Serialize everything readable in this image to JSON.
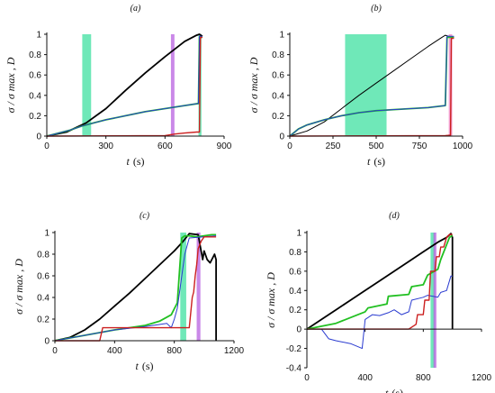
{
  "colors": {
    "series1": "#000000",
    "series2": "#22c022",
    "series3": "#2a3bd0",
    "series4": "#cc2020",
    "band_green": "#3fe0a0",
    "band_violet": "#b860e0",
    "band_pink": "#f080c0"
  },
  "chart_data": [
    {
      "type": "line",
      "panel_label": "(a)",
      "xlabel_var": "t",
      "xlabel_unit": "(s)",
      "ylabel": "σ / σ max ,  D",
      "xlim": [
        0,
        900
      ],
      "ylim": [
        0,
        1
      ],
      "xticks": [
        0,
        300,
        600,
        900
      ],
      "yticks": [
        0,
        0.2,
        0.4,
        0.6,
        0.8,
        1
      ],
      "bands": [
        {
          "x0": 180,
          "x1": 225,
          "color_key": "band_green"
        },
        {
          "x0": 630,
          "x1": 648,
          "color_key": "band_violet"
        },
        {
          "x0": 770,
          "x1": 785,
          "color_key": "band_green"
        }
      ],
      "series": [
        {
          "color_key": "series1",
          "width": 1.8,
          "x": [
            0,
            100,
            200,
            300,
            400,
            500,
            600,
            700,
            760,
            775,
            790
          ],
          "y": [
            0,
            0.04,
            0.13,
            0.27,
            0.45,
            0.62,
            0.78,
            0.93,
            0.99,
            1.0,
            0.98
          ]
        },
        {
          "color_key": "series2",
          "width": 1.8,
          "x": [
            0,
            60,
            120,
            180,
            240,
            300,
            400,
            500,
            600,
            700,
            770,
            775,
            790
          ],
          "y": [
            0,
            0.03,
            0.06,
            0.1,
            0.13,
            0.16,
            0.2,
            0.24,
            0.27,
            0.3,
            0.32,
            0.97,
            0.97
          ]
        },
        {
          "color_key": "series3",
          "width": 1.0,
          "x": [
            0,
            60,
            120,
            180,
            240,
            300,
            400,
            500,
            600,
            700,
            770,
            775,
            790
          ],
          "y": [
            0,
            0.03,
            0.06,
            0.1,
            0.13,
            0.16,
            0.2,
            0.24,
            0.27,
            0.3,
            0.32,
            0.98,
            0.98
          ]
        },
        {
          "color_key": "series4",
          "width": 1.4,
          "x": [
            0,
            600,
            650,
            700,
            760,
            775,
            780,
            790
          ],
          "y": [
            0,
            0.005,
            0.02,
            0.03,
            0.04,
            0.04,
            0.97,
            0.97
          ]
        }
      ]
    },
    {
      "type": "line",
      "panel_label": "(b)",
      "xlabel_var": "t",
      "xlabel_unit": "(s)",
      "ylabel": "σ / σ max ,  D",
      "xlim": [
        0,
        1000
      ],
      "ylim": [
        0,
        1
      ],
      "xticks": [
        0,
        250,
        500,
        750,
        1000
      ],
      "yticks": [
        0,
        0.2,
        0.4,
        0.6,
        0.8,
        1
      ],
      "bands": [
        {
          "x0": 320,
          "x1": 560,
          "color_key": "band_green"
        },
        {
          "x0": 920,
          "x1": 940,
          "color_key": "band_pink"
        }
      ],
      "series": [
        {
          "color_key": "series1",
          "width": 1.0,
          "x": [
            0,
            100,
            200,
            300,
            400,
            500,
            600,
            700,
            800,
            880,
            900,
            920,
            950
          ],
          "y": [
            0,
            0.05,
            0.14,
            0.27,
            0.4,
            0.52,
            0.64,
            0.76,
            0.88,
            0.97,
            0.99,
            0.98,
            0.97
          ]
        },
        {
          "color_key": "series2",
          "width": 1.8,
          "x": [
            0,
            50,
            100,
            200,
            300,
            400,
            500,
            600,
            700,
            800,
            900,
            910,
            950
          ],
          "y": [
            0,
            0.07,
            0.11,
            0.16,
            0.2,
            0.23,
            0.25,
            0.26,
            0.27,
            0.28,
            0.3,
            0.97,
            0.97
          ]
        },
        {
          "color_key": "series3",
          "width": 1.0,
          "x": [
            0,
            50,
            100,
            200,
            300,
            400,
            500,
            600,
            700,
            800,
            900,
            910,
            950
          ],
          "y": [
            0,
            0.07,
            0.11,
            0.16,
            0.2,
            0.23,
            0.25,
            0.26,
            0.27,
            0.28,
            0.3,
            0.98,
            0.98
          ]
        },
        {
          "color_key": "series4",
          "width": 1.4,
          "x": [
            0,
            900,
            930,
            935,
            950
          ],
          "y": [
            0,
            0.005,
            0.01,
            0.96,
            0.96
          ]
        }
      ]
    },
    {
      "type": "line",
      "panel_label": "(c)",
      "xlabel_var": "t",
      "xlabel_unit": "(s)",
      "ylabel": "σ / σ max ,  D",
      "xlim": [
        0,
        1200
      ],
      "ylim": [
        0,
        1
      ],
      "xticks": [
        0,
        400,
        800,
        1200
      ],
      "yticks": [
        0,
        0.2,
        0.4,
        0.6,
        0.8,
        1
      ],
      "bands": [
        {
          "x0": 840,
          "x1": 880,
          "color_key": "band_green"
        },
        {
          "x0": 950,
          "x1": 975,
          "color_key": "band_violet"
        }
      ],
      "series": [
        {
          "color_key": "series1",
          "width": 1.8,
          "x": [
            0,
            100,
            200,
            300,
            400,
            500,
            600,
            700,
            800,
            860,
            900,
            960,
            990,
            1000,
            1020,
            1040,
            1070,
            1080,
            1080
          ],
          "y": [
            0,
            0.03,
            0.1,
            0.2,
            0.32,
            0.44,
            0.57,
            0.7,
            0.83,
            0.92,
            0.99,
            0.98,
            0.75,
            0.83,
            0.75,
            0.72,
            0.8,
            0.75,
            0
          ]
        },
        {
          "color_key": "series2",
          "width": 1.8,
          "x": [
            0,
            200,
            400,
            600,
            700,
            780,
            820,
            850,
            870,
            880,
            900,
            950,
            1000,
            1050,
            1080
          ],
          "y": [
            0,
            0.05,
            0.1,
            0.14,
            0.18,
            0.24,
            0.35,
            0.95,
            0.97,
            0.97,
            0.97,
            0.96,
            0.97,
            0.98,
            0.98
          ]
        },
        {
          "color_key": "series3",
          "width": 1.0,
          "x": [
            0,
            200,
            400,
            600,
            700,
            750,
            780,
            800,
            820,
            850,
            870,
            900,
            1000,
            1080
          ],
          "y": [
            0,
            0.05,
            0.1,
            0.13,
            0.15,
            0.16,
            0.12,
            0.2,
            0.3,
            0.6,
            0.8,
            0.95,
            0.96,
            0.97
          ]
        },
        {
          "color_key": "series4",
          "width": 1.4,
          "x": [
            0,
            300,
            320,
            800,
            900,
            920,
            930,
            940,
            950,
            960,
            980,
            1000,
            1080
          ],
          "y": [
            0,
            0,
            0.12,
            0.12,
            0.12,
            0.4,
            0.45,
            0.6,
            0.7,
            0.85,
            0.92,
            0.96,
            0.96
          ]
        }
      ]
    },
    {
      "type": "line",
      "panel_label": "(d)",
      "xlabel_var": "t",
      "xlabel_unit": "(s)",
      "ylabel": "σ / σ max ,  D",
      "xlim": [
        0,
        1200
      ],
      "ylim": [
        -0.4,
        1
      ],
      "xticks": [
        0,
        400,
        800,
        1200
      ],
      "yticks": [
        -0.4,
        -0.2,
        0,
        0.2,
        0.4,
        0.6,
        0.8,
        1
      ],
      "bands": [
        {
          "x0": 850,
          "x1": 880,
          "color_key": "band_green"
        },
        {
          "x0": 870,
          "x1": 890,
          "color_key": "band_violet"
        }
      ],
      "series": [
        {
          "color_key": "series1",
          "width": 1.8,
          "x": [
            0,
            100,
            200,
            300,
            400,
            500,
            600,
            700,
            800,
            900,
            960,
            990,
            1000,
            1000
          ],
          "y": [
            0,
            0.1,
            0.2,
            0.3,
            0.4,
            0.5,
            0.6,
            0.7,
            0.8,
            0.9,
            0.95,
            0.99,
            0.95,
            0
          ]
        },
        {
          "color_key": "series2",
          "width": 1.8,
          "x": [
            0,
            200,
            300,
            400,
            420,
            550,
            560,
            700,
            720,
            800,
            830,
            900,
            920,
            980,
            1000
          ],
          "y": [
            0,
            0.06,
            0.12,
            0.18,
            0.22,
            0.26,
            0.34,
            0.36,
            0.44,
            0.46,
            0.56,
            0.62,
            0.72,
            0.95,
            0.97
          ]
        },
        {
          "color_key": "series3",
          "width": 1.0,
          "x": [
            0,
            100,
            150,
            200,
            300,
            380,
            400,
            450,
            500,
            560,
            600,
            650,
            700,
            720,
            800,
            830,
            900,
            920,
            960,
            990,
            1000
          ],
          "y": [
            0,
            0,
            -0.1,
            -0.12,
            -0.15,
            -0.2,
            0.1,
            0.15,
            0.14,
            0.17,
            0.2,
            0.15,
            0.18,
            0.3,
            0.33,
            0.35,
            0.33,
            0.38,
            0.4,
            0.55,
            0.55
          ]
        },
        {
          "color_key": "series4",
          "width": 1.4,
          "x": [
            0,
            700,
            750,
            760,
            800,
            810,
            840,
            850,
            880,
            890,
            910,
            920,
            940,
            960,
            980,
            1000
          ],
          "y": [
            0,
            0,
            0.05,
            0.15,
            0.15,
            0.3,
            0.3,
            0.6,
            0.6,
            0.75,
            0.75,
            0.85,
            0.85,
            0.95,
            0.98,
            0.98
          ]
        }
      ]
    }
  ]
}
